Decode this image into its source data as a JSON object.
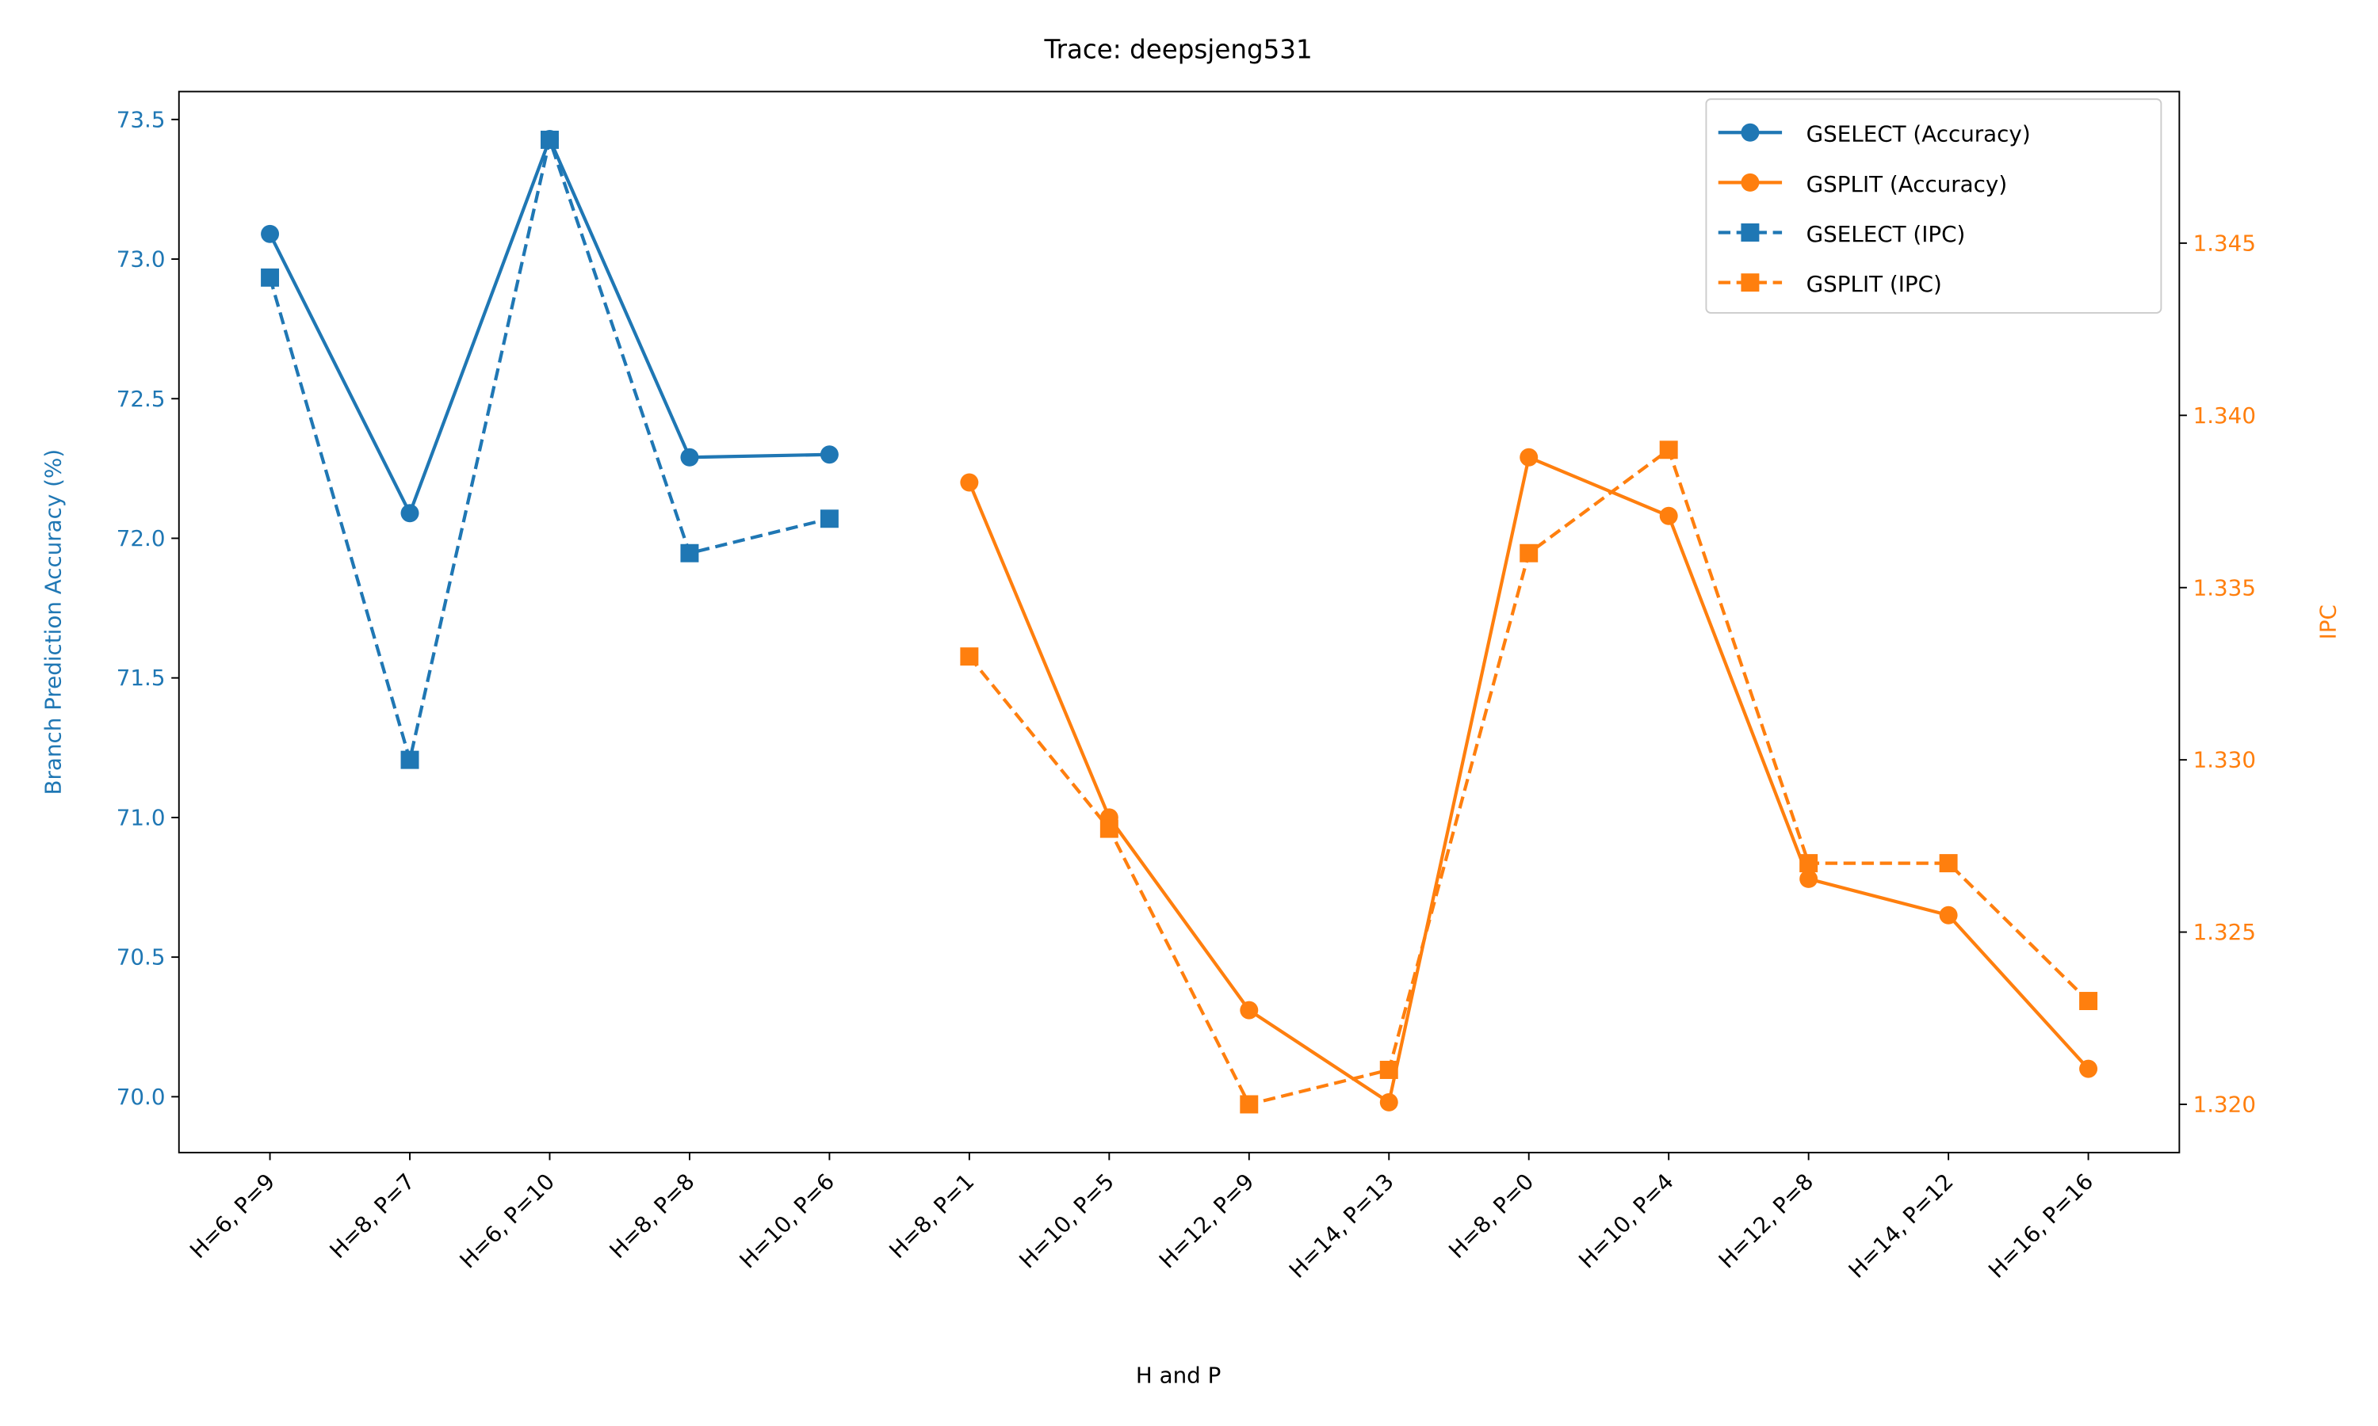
{
  "chart_data": {
    "type": "line",
    "title": "Trace: deepsjeng531",
    "xlabel": "H and P",
    "ylabel": "Branch Prediction Accuracy (%)",
    "y2label": "IPC",
    "categories": [
      "H=6, P=9",
      "H=8, P=7",
      "H=6, P=10",
      "H=8, P=8",
      "H=10, P=6",
      "H=8, P=1",
      "H=10, P=5",
      "H=12, P=9",
      "H=14, P=13",
      "H=8, P=0",
      "H=10, P=4",
      "H=12, P=8",
      "H=14, P=12",
      "H=16, P=16"
    ],
    "ylim": [
      69.8,
      73.6
    ],
    "yticks": [
      {
        "value": 70,
        "label": "70.0"
      },
      70.5,
      {
        "value": 71,
        "label": "71.0"
      },
      71.5,
      {
        "value": 72,
        "label": "72.0"
      },
      72.5,
      {
        "value": 73,
        "label": "73.0"
      },
      73.5
    ],
    "y2lim": [
      1.3186,
      1.3494
    ],
    "y2ticks": [
      {
        "value": 1.32,
        "label": "1.320"
      },
      1.325,
      {
        "value": 1.33,
        "label": "1.330"
      },
      1.335,
      {
        "value": 1.34,
        "label": "1.340"
      },
      1.345
    ],
    "y_color": "#1f77b4",
    "y2_color": "#ff7f0e",
    "legend": "upper right",
    "series": [
      {
        "name": "GSELECT (Accuracy)",
        "color": "#1f77b4",
        "linestyle": "solid",
        "marker": "circle",
        "axis": "y",
        "values": [
          73.09,
          72.09,
          73.43,
          72.29,
          72.3,
          null,
          null,
          null,
          null,
          null,
          null,
          null,
          null,
          null
        ]
      },
      {
        "name": "GSPLIT (Accuracy)",
        "color": "#ff7f0e",
        "linestyle": "solid",
        "marker": "circle",
        "axis": "y",
        "values": [
          null,
          null,
          null,
          null,
          null,
          72.2,
          71.0,
          70.31,
          69.98,
          72.29,
          72.08,
          70.78,
          70.65,
          70.1
        ]
      },
      {
        "name": "GSELECT (IPC)",
        "color": "#1f77b4",
        "linestyle": "dashed",
        "marker": "square",
        "axis": "y2",
        "values": [
          1.344,
          1.33,
          1.348,
          1.336,
          1.337,
          null,
          null,
          null,
          null,
          null,
          null,
          null,
          null,
          null
        ]
      },
      {
        "name": "GSPLIT (IPC)",
        "color": "#ff7f0e",
        "linestyle": "dashed",
        "marker": "square",
        "axis": "y2",
        "values": [
          null,
          null,
          null,
          null,
          null,
          1.333,
          1.328,
          1.32,
          1.321,
          1.336,
          1.339,
          1.327,
          1.327,
          1.323
        ]
      }
    ]
  }
}
